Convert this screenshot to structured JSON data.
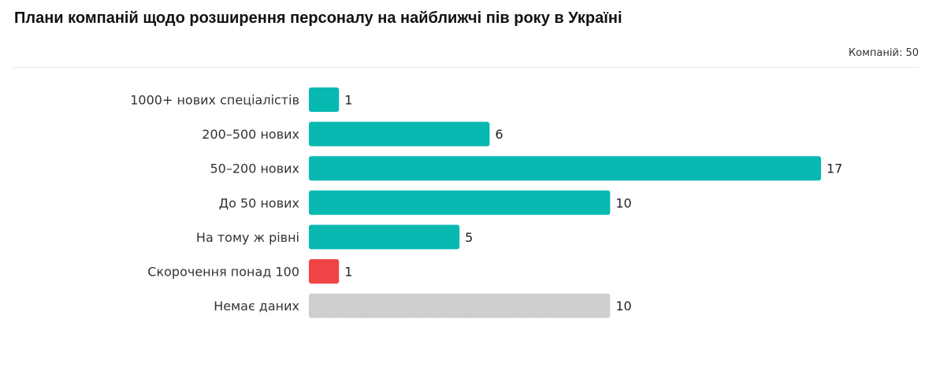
{
  "header": {
    "title": "Плани компаній щодо розширення персоналу на найближчі пів року в Україні",
    "meta": "Компаній: 50"
  },
  "chart_data": {
    "type": "bar",
    "orientation": "horizontal",
    "title": "Плани компаній щодо розширення персоналу на найближчі пів року в Україні",
    "subtitle": "Компаній: 50",
    "categories": [
      "1000+ нових спеціалістів",
      "200–500 нових",
      "50–200 нових",
      "До 50 нових",
      "На тому ж рівні",
      "Скорочення понад 100",
      "Немає даних"
    ],
    "values": [
      1,
      6,
      17,
      10,
      5,
      1,
      10
    ],
    "colors": [
      "#07b9b1",
      "#07b9b1",
      "#07b9b1",
      "#07b9b1",
      "#07b9b1",
      "#ef4346",
      "#d0d0d0"
    ],
    "xlim": [
      0,
      17
    ],
    "grid": false,
    "legend": "none"
  }
}
